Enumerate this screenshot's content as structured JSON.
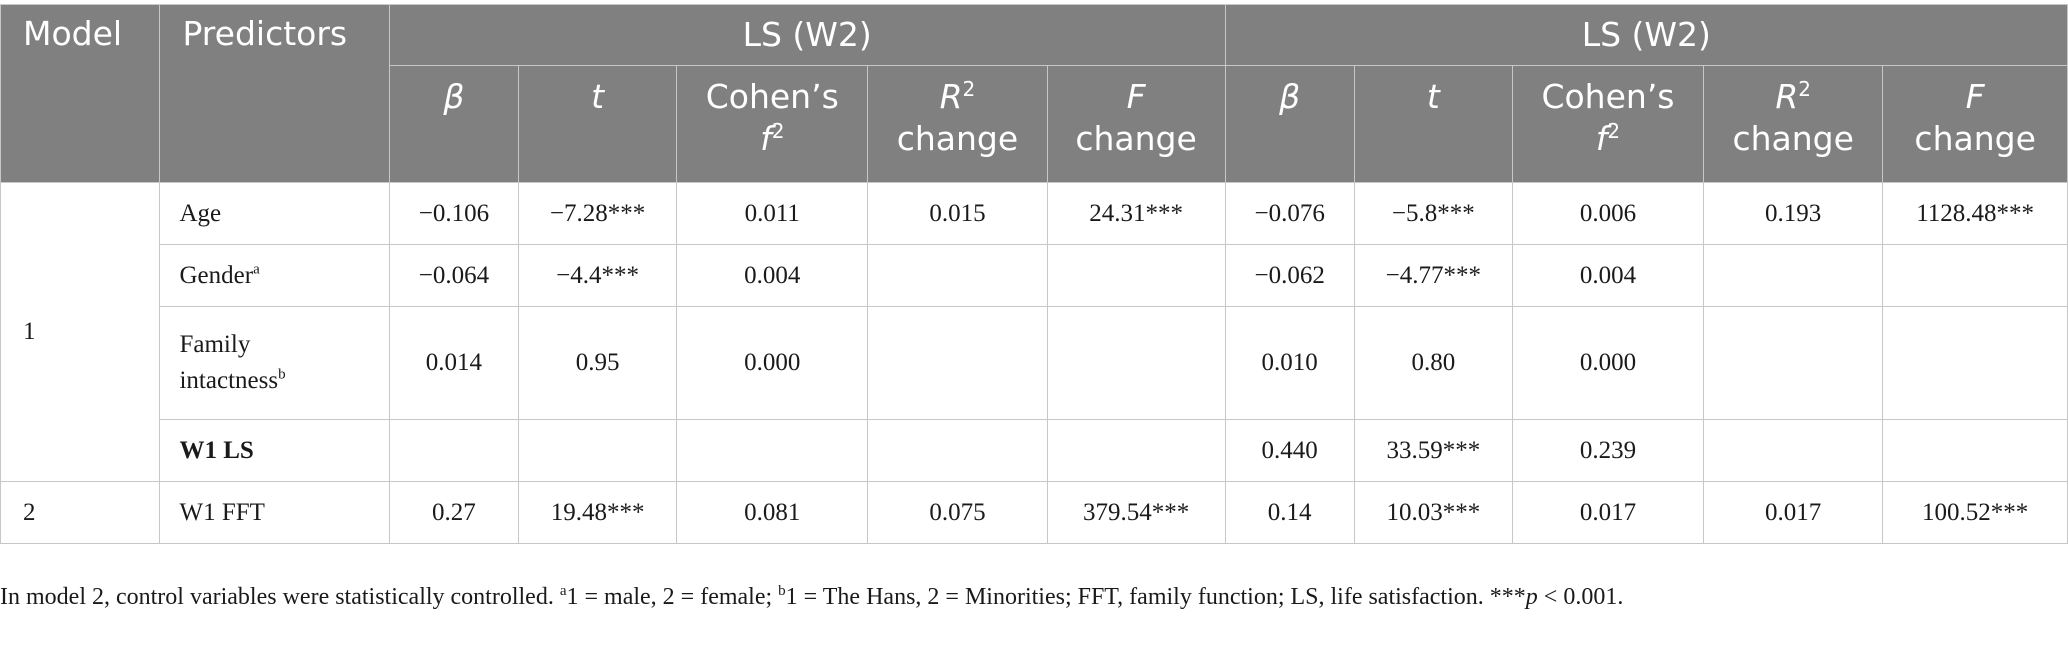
{
  "headers": {
    "model": "Model",
    "predictors": "Predictors",
    "groups": [
      "LS (W2)",
      "LS (W2)"
    ],
    "beta": "β",
    "t": "t",
    "cohens_top": "Cohen’s",
    "cohens_f": "f",
    "cohens_sup": "2",
    "r2_r": "R",
    "r2_sup": "2",
    "r2_change": "change",
    "f_f": "F",
    "f_change": "change"
  },
  "rows": [
    {
      "model": "1",
      "predictor": "Age",
      "sup": "",
      "cells": [
        "−0.106",
        "−7.28***",
        "0.011",
        "0.015",
        "24.31***",
        "−0.076",
        "−5.8***",
        "0.006",
        "0.193",
        "1128.48***"
      ]
    },
    {
      "predictor": "Gender",
      "sup": "a",
      "cells": [
        "−0.064",
        "−4.4***",
        "0.004",
        "",
        "",
        "−0.062",
        "−4.77***",
        "0.004",
        "",
        ""
      ]
    },
    {
      "predictor_line1": "Family",
      "predictor_line2": "intactness",
      "sup": "b",
      "cells": [
        "0.014",
        "0.95",
        "0.000",
        "",
        "",
        "0.010",
        "0.80",
        "0.000",
        "",
        ""
      ]
    },
    {
      "predictor": "W1 LS",
      "sup": "",
      "cells": [
        "",
        "",
        "",
        "",
        "",
        "0.440",
        "33.59***",
        "0.239",
        "",
        ""
      ]
    },
    {
      "model": "2",
      "predictor": "W1 FFT",
      "sup": "",
      "cells": [
        "0.27",
        "19.48***",
        "0.081",
        "0.075",
        "379.54***",
        "0.14",
        "10.03***",
        "0.017",
        "0.017",
        "100.52***"
      ]
    }
  ],
  "note": {
    "part1": "In model 2, control variables were statistically controlled. ",
    "sup_a": "a",
    "part2": "1 = male, 2 = female; ",
    "sup_b": "b",
    "part3": "1 = The Hans, 2 = Minorities; FFT, family function; LS, life satisfaction. ***",
    "p": "p",
    "part4": " < 0.001."
  }
}
